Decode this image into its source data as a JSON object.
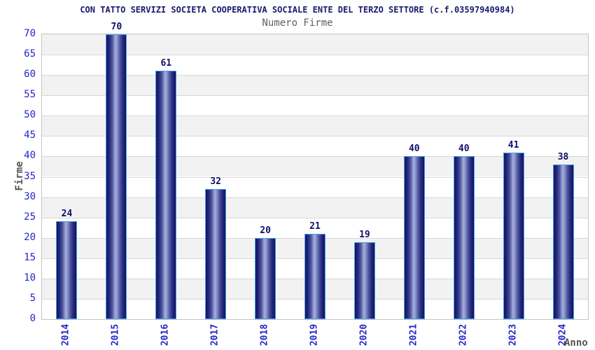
{
  "chart_data": {
    "type": "bar",
    "title": "CON TATTO SERVIZI SOCIETA COOPERATIVA SOCIALE ENTE DEL TERZO SETTORE (c.f.03597940984)",
    "subtitle": "Numero Firme",
    "xlabel": "Anno",
    "ylabel": "Firme",
    "categories": [
      "2014",
      "2015",
      "2016",
      "2017",
      "2018",
      "2019",
      "2020",
      "2021",
      "2022",
      "2023",
      "2024"
    ],
    "values": [
      24,
      70,
      61,
      32,
      20,
      21,
      19,
      40,
      40,
      41,
      38
    ],
    "ylim": [
      0,
      70
    ],
    "ytick_step": 5,
    "yticks": [
      0,
      5,
      10,
      15,
      20,
      25,
      30,
      35,
      40,
      45,
      50,
      55,
      60,
      65,
      70
    ],
    "grid": "horizontal",
    "legend_position": "none",
    "colors": {
      "title": "#1a1a6e",
      "subtitle": "#606060",
      "tick_label": "#2424cc",
      "value_label": "#10106a",
      "axis_label": "#555555",
      "band_gray": "#f2f2f2",
      "band_white": "#ffffff",
      "gridline": "#d8d8d8",
      "plot_border": "#c4c4c4",
      "bar_border": "#44a2e8",
      "bar_dark": "#14145f",
      "bar_light": "#a6aedd"
    }
  }
}
